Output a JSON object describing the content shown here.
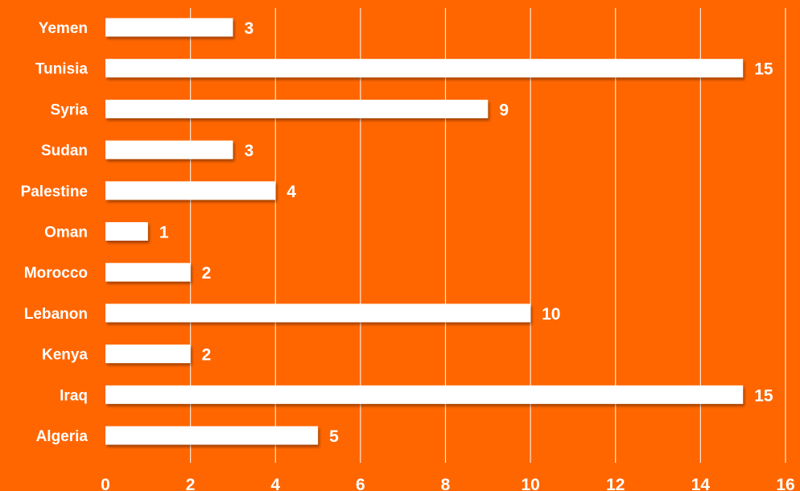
{
  "chart_data": {
    "type": "bar",
    "orientation": "horizontal",
    "categories": [
      "Yemen",
      "Tunisia",
      "Syria",
      "Sudan",
      "Palestine",
      "Oman",
      "Morocco",
      "Lebanon",
      "Kenya",
      "Iraq",
      "Algeria"
    ],
    "values": [
      3,
      15,
      9,
      3,
      4,
      1,
      2,
      10,
      2,
      15,
      5
    ],
    "xlim": [
      0,
      16
    ],
    "xticks": [
      0,
      2,
      4,
      6,
      8,
      10,
      12,
      14,
      16
    ],
    "grid": "vertical",
    "data_labels": true,
    "legend": "none"
  },
  "colors": {
    "background": "#FF6600",
    "bar": "#FFFFFF",
    "text": "#FFFFFF",
    "grid": "#FFFFFF"
  }
}
